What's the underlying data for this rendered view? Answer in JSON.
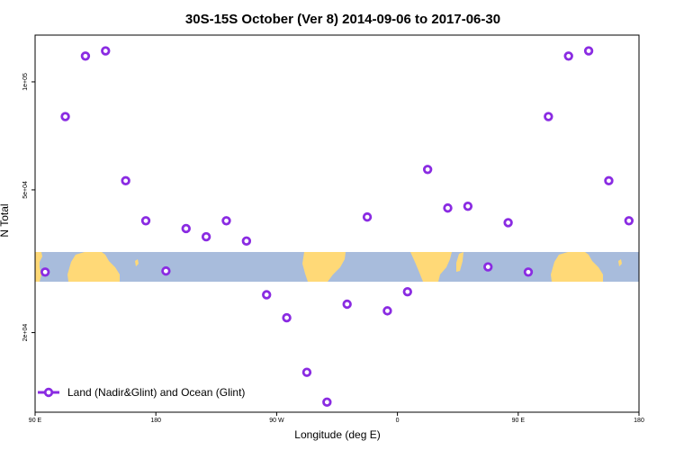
{
  "chart_data": {
    "type": "scatter",
    "title": "30S-15S October (Ver 8)   2014-09-06 to 2017-06-30",
    "xlabel": "Longitude (deg E)",
    "ylabel": "N Total",
    "x_ticks": [
      {
        "value": 90,
        "label": "90 E"
      },
      {
        "value": 180,
        "label": "180"
      },
      {
        "value": 270,
        "label": "90 W"
      },
      {
        "value": 360,
        "label": "0"
      },
      {
        "value": 450,
        "label": "90 E"
      },
      {
        "value": 540,
        "label": "180"
      }
    ],
    "y_ticks": [
      {
        "value": 20000,
        "label": "2e+04"
      },
      {
        "value": 50000,
        "label": "5e+04"
      },
      {
        "value": 100000,
        "label": "1e+05"
      }
    ],
    "y_scale": "log",
    "xlim": [
      90,
      540
    ],
    "ylim": [
      12000,
      135000
    ],
    "series": [
      {
        "name": "Land (Nadir&Glint) and Ocean (Glint)",
        "color": "#8a2be2",
        "x": [
          97.5,
          112.5,
          127.5,
          142.5,
          157.5,
          172.5,
          187.5,
          202.5,
          217.5,
          232.5,
          247.5,
          262.5,
          277.5,
          292.5,
          307.5,
          322.5,
          337.5,
          352.5,
          367.5,
          382.5,
          397.5,
          412.5,
          427.5,
          442.5,
          457.5,
          472.5,
          487.5,
          502.5,
          517.5,
          532.5
        ],
        "y": [
          29500,
          80000,
          118000,
          122000,
          53000,
          41000,
          29700,
          39000,
          37000,
          41000,
          36000,
          25500,
          22000,
          15500,
          12800,
          24000,
          42000,
          23000,
          26000,
          57000,
          44500,
          45000,
          30500,
          40500,
          29500,
          80000,
          118000,
          122000,
          53000,
          41000
        ]
      }
    ],
    "legend": {
      "position": "bottom-left"
    },
    "map_strip": {
      "lat_range": "30S-15S",
      "ocean_color": "#a8bcdc",
      "land_color": "#ffd977"
    }
  }
}
